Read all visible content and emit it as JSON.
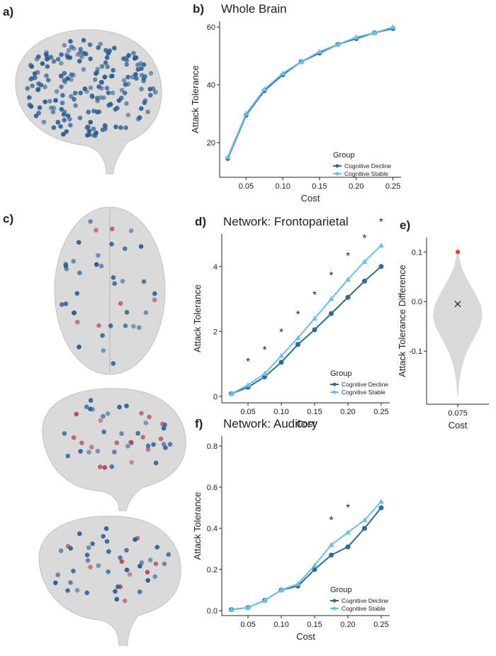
{
  "panel_labels": [
    "a)",
    "c)"
  ],
  "chart_data": [
    {
      "type": "line",
      "panel_label": "b)",
      "title": "Whole Brain",
      "xlabel": "Cost",
      "ylabel": "Attack Tolerance",
      "x": [
        0.025,
        0.05,
        0.075,
        0.1,
        0.125,
        0.15,
        0.175,
        0.2,
        0.225,
        0.25
      ],
      "series": [
        {
          "name": "Cognitive Decline",
          "color": "#2e6b96",
          "values": [
            14.5,
            29.5,
            38,
            43.5,
            48,
            51,
            54,
            56,
            58,
            59.5
          ]
        },
        {
          "name": "Cognitive Stable",
          "color": "#6cbfe8",
          "values": [
            15,
            30,
            38.5,
            44,
            48,
            51.5,
            54,
            56.5,
            58,
            60
          ]
        }
      ],
      "legend_title": "Group",
      "xlim": [
        0.014,
        0.261
      ],
      "xticks": [
        0.05,
        {
          "value": 0.1,
          "label": "0.10"
        },
        0.15,
        {
          "value": 0.2,
          "label": "0.20"
        },
        0.25
      ],
      "ylim": [
        8,
        62
      ],
      "yticks": [
        20,
        40,
        60
      ]
    },
    {
      "type": "line",
      "panel_label": "d)",
      "title": "Network: Frontoparietal",
      "xlabel": "Cost",
      "ylabel": "Attack Tolerance",
      "x": [
        0.025,
        0.05,
        0.075,
        0.1,
        0.125,
        0.15,
        0.175,
        0.2,
        0.225,
        0.25
      ],
      "series": [
        {
          "name": "Cognitive Decline",
          "color": "#2e6b96",
          "values": [
            0.08,
            0.28,
            0.6,
            1.05,
            1.6,
            2.05,
            2.55,
            3.05,
            3.55,
            4.0
          ]
        },
        {
          "name": "Cognitive Stable",
          "color": "#6cbfe8",
          "values": [
            0.08,
            0.35,
            0.7,
            1.25,
            1.8,
            2.4,
            3.0,
            3.6,
            4.15,
            4.65
          ]
        }
      ],
      "legend_title": "Group",
      "significance": {
        "label": "*",
        "x": [
          0.05,
          0.075,
          0.1,
          0.125,
          0.15,
          0.175,
          0.2,
          0.225,
          0.25
        ]
      },
      "xlim": [
        0.0106,
        0.2628
      ],
      "xticks": [
        0.05,
        {
          "value": 0.1,
          "label": "0.10"
        },
        0.15,
        {
          "value": 0.2,
          "label": "0.20"
        },
        0.25
      ],
      "ylim": [
        -0.2,
        5
      ],
      "yticks": [
        0,
        2,
        4
      ]
    },
    {
      "type": "violin",
      "panel_label": "e)",
      "xlabel": "Cost",
      "ylabel": "Attack Tolerance Difference",
      "categories": [
        "0.075"
      ],
      "color": "#d9d9d9",
      "violin": {
        "y": [
          -0.19,
          -0.17,
          -0.15,
          -0.13,
          -0.11,
          -0.09,
          -0.07,
          -0.05,
          -0.03,
          -0.01,
          0.01,
          0.03,
          0.05,
          0.07,
          0.09,
          0.11
        ],
        "width": [
          0.02,
          0.05,
          0.1,
          0.18,
          0.3,
          0.48,
          0.7,
          0.9,
          1.0,
          0.95,
          0.78,
          0.55,
          0.33,
          0.15,
          0.06,
          0.02
        ]
      },
      "mean": -0.005,
      "observed": 0.1,
      "observed_color": "#e8352a",
      "ylim": [
        -0.207,
        0.129
      ],
      "yticks": [
        -0.1,
        {
          "value": 0,
          "label": "0.0"
        },
        0.1
      ]
    },
    {
      "type": "line",
      "panel_label": "f)",
      "title": "Network: Auditory",
      "xlabel": "Cost",
      "ylabel": "Attack Tolerance",
      "x": [
        0.025,
        0.05,
        0.075,
        0.1,
        0.125,
        0.15,
        0.175,
        0.2,
        0.225,
        0.25
      ],
      "series": [
        {
          "name": "Cognitive Decline",
          "color": "#2e6b96",
          "values": [
            0.005,
            0.015,
            0.05,
            0.1,
            0.12,
            0.2,
            0.27,
            0.31,
            0.4,
            0.5
          ]
        },
        {
          "name": "Cognitive Stable",
          "color": "#6cbfe8",
          "values": [
            0.005,
            0.015,
            0.05,
            0.1,
            0.13,
            0.22,
            0.32,
            0.38,
            0.44,
            0.53
          ]
        }
      ],
      "legend_title": "Group",
      "significance": {
        "label": "*",
        "x": [
          0.175,
          0.2
        ]
      },
      "xlim": [
        0.0106,
        0.2628
      ],
      "xticks": [
        0.05,
        {
          "value": 0.1,
          "label": "0.10"
        },
        0.15,
        {
          "value": 0.2,
          "label": "0.20"
        },
        0.25
      ],
      "ylim": [
        -0.024,
        0.848
      ],
      "yticks": [
        {
          "value": 0,
          "label": "0.0"
        },
        0.2,
        0.4,
        0.6,
        0.8
      ]
    }
  ]
}
